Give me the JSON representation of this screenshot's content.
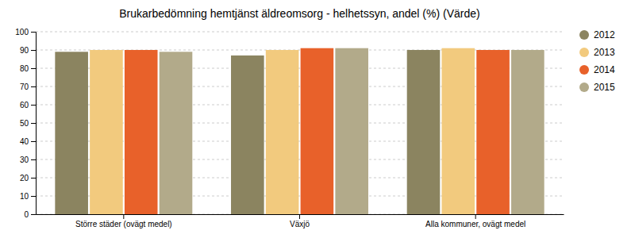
{
  "chart_data": {
    "type": "bar",
    "title": "Brukarbedömning hemtjänst äldreomsorg - helhetssyn, andel (%) (Värde)",
    "categories": [
      "Större städer (ovägt medel)",
      "Växjö",
      "Alla kommuner, ovägt medel"
    ],
    "series": [
      {
        "name": "2012",
        "color": "#8b8460",
        "values": [
          89,
          87,
          90
        ]
      },
      {
        "name": "2013",
        "color": "#f2ca7e",
        "values": [
          90,
          90,
          91
        ]
      },
      {
        "name": "2014",
        "color": "#e8612a",
        "values": [
          90,
          91,
          90
        ]
      },
      {
        "name": "2015",
        "color": "#b2aa8a",
        "values": [
          89,
          91,
          90
        ]
      }
    ],
    "ylim": [
      0,
      100
    ],
    "yticks": [
      0,
      10,
      20,
      30,
      40,
      50,
      60,
      70,
      80,
      90,
      100
    ],
    "grid": true,
    "legend": "right"
  }
}
